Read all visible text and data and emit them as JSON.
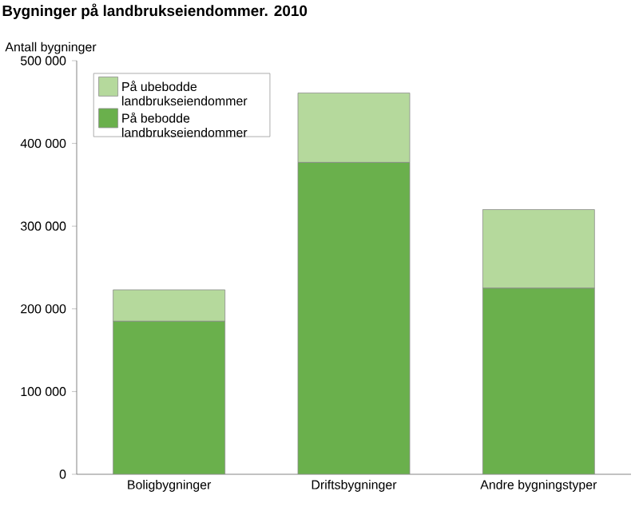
{
  "chart_data": {
    "type": "bar",
    "stacked": true,
    "title": "Bygninger på landbrukseiendommer. 2010",
    "ylabel": "Antall bygninger",
    "categories": [
      "Boligbygninger",
      "Driftsbygninger",
      "Andre bygningstyper"
    ],
    "series": [
      {
        "name": "På bebodde landbrukseiendommer",
        "color": "#6ab04c",
        "values": [
          185000,
          377000,
          225000
        ]
      },
      {
        "name": "På ubebodde landbrukseiendommer",
        "color": "#b5d99c",
        "values": [
          38000,
          84000,
          95000
        ]
      }
    ],
    "ylim": [
      0,
      500000
    ],
    "yticks": [
      0,
      {
        "value": 100000,
        "label": "100 000"
      },
      {
        "value": 200000,
        "label": "200 000"
      },
      {
        "value": 300000,
        "label": "300 000"
      },
      {
        "value": 400000,
        "label": "400 000"
      },
      {
        "value": 500000,
        "label": "500 000"
      }
    ],
    "legend": "top left",
    "grid": false
  }
}
